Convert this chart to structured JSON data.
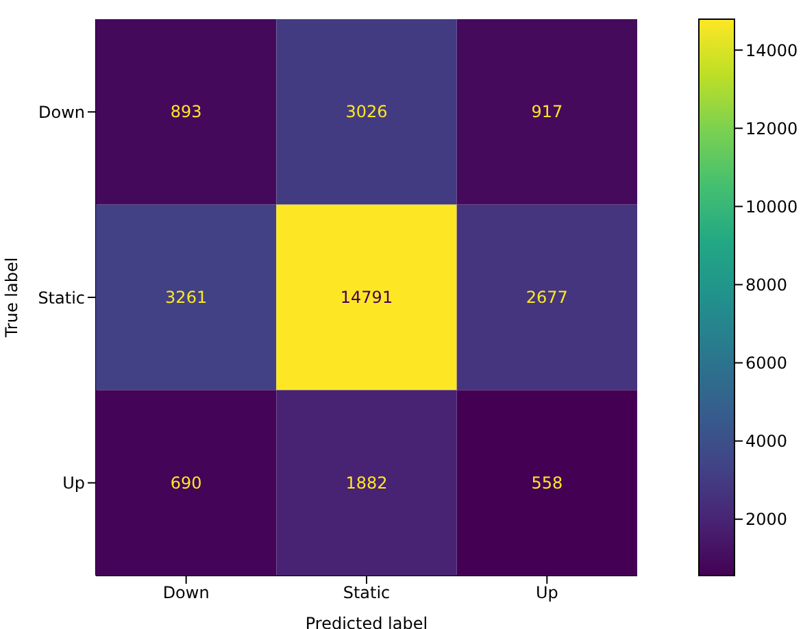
{
  "chart_data": {
    "type": "heatmap",
    "xlabel": "Predicted label",
    "ylabel": "True label",
    "categories": [
      "Down",
      "Static",
      "Up"
    ],
    "y_categories": [
      "Down",
      "Static",
      "Up"
    ],
    "cells": [
      [
        893,
        3026,
        917
      ],
      [
        3261,
        14791,
        2677
      ],
      [
        690,
        1882,
        558
      ]
    ],
    "clim": [
      558,
      14791
    ],
    "cticks": [
      2000,
      4000,
      6000,
      8000,
      10000,
      12000,
      14000
    ],
    "data_labels": true
  }
}
